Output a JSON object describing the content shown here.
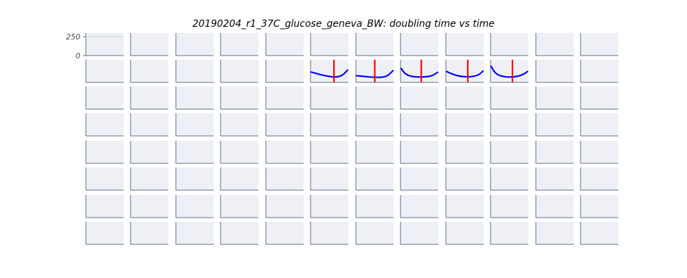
{
  "chart_data": {
    "type": "line",
    "title": "20190204_r1_37C_glucose_geneva_BW: doubling time vs time",
    "layout": {
      "rows": 8,
      "cols": 12
    },
    "ylim": [
      0,
      300
    ],
    "yticks": [
      0,
      250
    ],
    "ytick_labels": [
      "0",
      "250"
    ],
    "grid": true,
    "colors": {
      "panel_bg": "#eef0f5",
      "axis": "#5d6d82",
      "curve": "#0000ff",
      "marker": "#ff0000",
      "gridline": "#c9d0db"
    },
    "panels": [
      {
        "row": 1,
        "col": 5,
        "x": [
          0,
          0.15,
          0.3,
          0.45,
          0.6,
          0.75,
          0.85,
          0.92,
          1.0
        ],
        "y": [
          0.55,
          0.62,
          0.69,
          0.74,
          0.78,
          0.77,
          0.7,
          0.6,
          0.45
        ],
        "marker_x": 0.62
      },
      {
        "row": 1,
        "col": 6,
        "x": [
          0,
          0.15,
          0.3,
          0.45,
          0.6,
          0.75,
          0.85,
          0.92,
          1.0
        ],
        "y": [
          0.72,
          0.74,
          0.77,
          0.79,
          0.8,
          0.78,
          0.72,
          0.62,
          0.48
        ],
        "marker_x": 0.5
      },
      {
        "row": 1,
        "col": 7,
        "x": [
          0,
          0.08,
          0.18,
          0.3,
          0.45,
          0.6,
          0.75,
          0.88,
          1.0
        ],
        "y": [
          0.38,
          0.58,
          0.7,
          0.76,
          0.78,
          0.78,
          0.76,
          0.7,
          0.56
        ],
        "marker_x": 0.55
      },
      {
        "row": 1,
        "col": 8,
        "x": [
          0,
          0.1,
          0.22,
          0.35,
          0.5,
          0.65,
          0.8,
          0.9,
          1.0
        ],
        "y": [
          0.52,
          0.6,
          0.68,
          0.74,
          0.77,
          0.77,
          0.73,
          0.66,
          0.5
        ],
        "marker_x": 0.58
      },
      {
        "row": 1,
        "col": 9,
        "x": [
          0,
          0.07,
          0.16,
          0.28,
          0.42,
          0.58,
          0.75,
          0.88,
          1.0
        ],
        "y": [
          0.28,
          0.5,
          0.66,
          0.74,
          0.78,
          0.78,
          0.74,
          0.66,
          0.52
        ],
        "marker_x": 0.58
      }
    ]
  }
}
